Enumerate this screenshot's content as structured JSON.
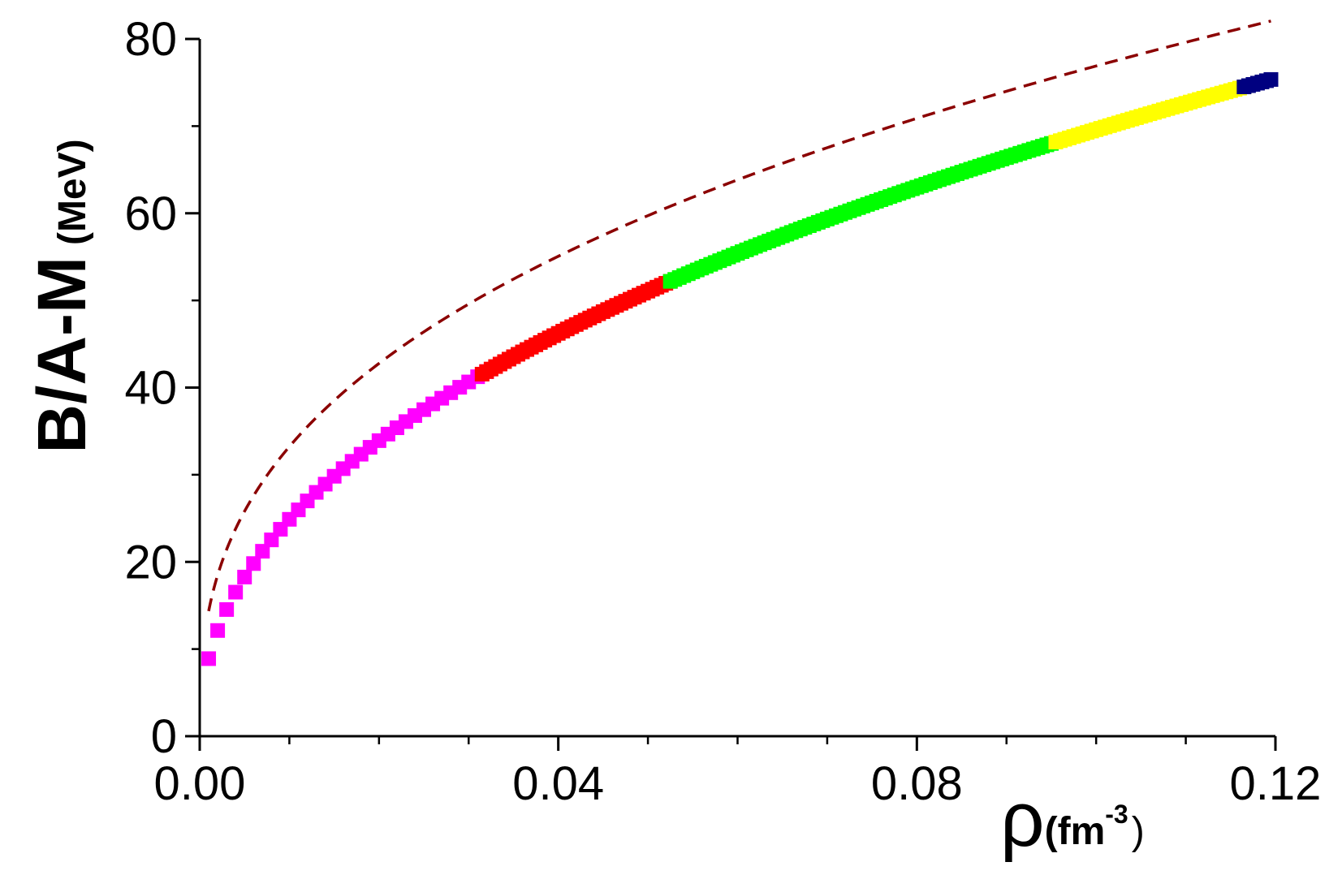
{
  "chart_data": {
    "type": "scatter",
    "ylabel_main": "B/A-M",
    "ylabel_unit": "(MeV)",
    "xlabel_main": "ρ",
    "xlabel_unit_open": "(fm",
    "xlabel_unit_exp": "-3",
    "xlabel_unit_close": ")",
    "xlim": [
      0.0,
      0.12
    ],
    "ylim": [
      0,
      80
    ],
    "x_ticks": [
      {
        "value": 0.0,
        "label": "0.00"
      },
      {
        "value": 0.04,
        "label": "0.04"
      },
      {
        "value": 0.08,
        "label": "0.08"
      },
      {
        "value": 0.12,
        "label": "0.12"
      }
    ],
    "y_ticks": [
      {
        "value": 0,
        "label": "0"
      },
      {
        "value": 20,
        "label": "20"
      },
      {
        "value": 40,
        "label": "40"
      },
      {
        "value": 60,
        "label": "60"
      },
      {
        "value": 80,
        "label": "80"
      }
    ],
    "x_minor_step": 0.01,
    "y_minor_step": 10,
    "grid": false,
    "curve_model": {
      "form": "a * x^b",
      "a": 194.6,
      "b": 0.4466
    },
    "dashed_model": {
      "form": "a * x^b",
      "a": 178.0,
      "b": 0.3645
    },
    "series": [
      {
        "color": "#ff00ff",
        "x_range": [
          0.001,
          0.0315
        ],
        "step": 0.001,
        "marker": "square"
      },
      {
        "color": "#ff0000",
        "x_range": [
          0.0315,
          0.0525
        ],
        "step": 0.0005,
        "marker": "square"
      },
      {
        "color": "#00ff00",
        "x_range": [
          0.0525,
          0.0955
        ],
        "step": 0.0005,
        "marker": "square"
      },
      {
        "color": "#ffff00",
        "x_range": [
          0.0955,
          0.1165
        ],
        "step": 0.0005,
        "marker": "square"
      },
      {
        "color": "#000080",
        "x_range": [
          0.1165,
          0.1195
        ],
        "step": 0.0005,
        "marker": "square"
      }
    ],
    "dashed_line": {
      "color": "#8b0000",
      "x_range": [
        0.001,
        0.1195
      ]
    }
  }
}
